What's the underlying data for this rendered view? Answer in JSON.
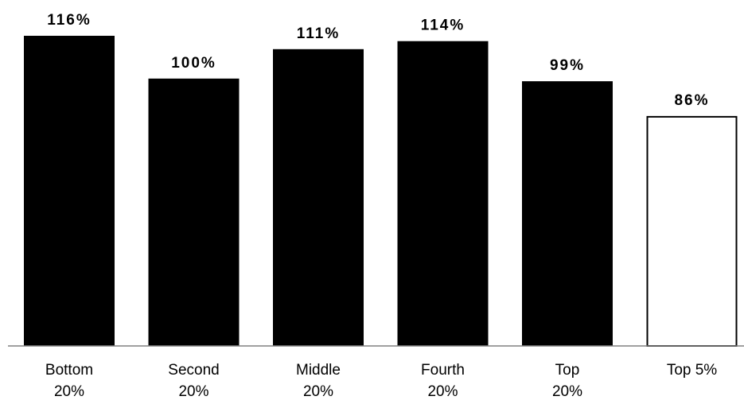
{
  "chart_data": {
    "type": "bar",
    "categories": [
      [
        "Bottom",
        "20%"
      ],
      [
        "Second",
        "20%"
      ],
      [
        "Middle",
        "20%"
      ],
      [
        "Fourth",
        "20%"
      ],
      [
        "Top",
        "20%"
      ],
      [
        "Top 5%"
      ]
    ],
    "values": [
      116,
      100,
      111,
      114,
      99,
      86
    ],
    "data_labels": [
      "116%",
      "100%",
      "111%",
      "114%",
      "99%",
      "86%"
    ],
    "bar_styles": [
      "filled",
      "filled",
      "filled",
      "filled",
      "filled",
      "outline"
    ],
    "ylim": [
      0,
      116
    ],
    "grid": false,
    "legend": "none",
    "title": "",
    "xlabel": "",
    "ylabel": ""
  },
  "colors": {
    "bar_fill": "#000000",
    "outline_fill": "#ffffff",
    "stroke": "#000000",
    "axis": "#808080"
  }
}
